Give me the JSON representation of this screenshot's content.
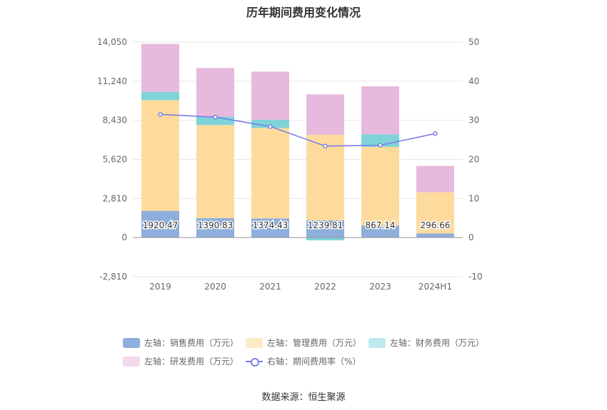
{
  "title": "历年期间费用变化情况",
  "source": "数据来源：恒生聚源",
  "colors": {
    "sales": "#8eaedb",
    "admin": "#fedb9d",
    "finance": "#7fd3d8",
    "rnd": "#e7b9dc",
    "rate": "#7b7fe8"
  },
  "legend": [
    {
      "label": "左轴：销售费用（万元）",
      "color": "#8eaedb",
      "kind": "box"
    },
    {
      "label": "左轴：管理费用（万元）",
      "color": "#fedb9d",
      "kind": "box"
    },
    {
      "label": "左轴：财务费用（万元）",
      "color": "#7fd3d8",
      "kind": "box"
    },
    {
      "label": "左轴：研发费用（万元）",
      "color": "#e7b9dc",
      "kind": "box"
    },
    {
      "label": "右轴：期间费用率（%）",
      "color": "#7b7fe8",
      "kind": "line"
    }
  ],
  "chart_data": {
    "type": "bar",
    "stacked": true,
    "categories": [
      "2019",
      "2020",
      "2021",
      "2022",
      "2023",
      "2024H1"
    ],
    "left_axis": {
      "ticks": [
        "14,050",
        "11,240",
        "8,430",
        "5,620",
        "2,810",
        "0",
        "-2,810"
      ],
      "ylim": [
        -2810,
        14050
      ]
    },
    "right_axis": {
      "ticks": [
        "50",
        "40",
        "30",
        "20",
        "10",
        "0",
        "-10"
      ],
      "ylim": [
        -10,
        50
      ]
    },
    "series": [
      {
        "name": "左轴：销售费用（万元）",
        "key": "sales",
        "values": [
          1920.47,
          1390.83,
          1374.43,
          1239.81,
          867.14,
          296.66
        ],
        "labels": [
          "1920.47",
          "1390.83",
          "1374.43",
          "1239.81",
          "867.14",
          "296.66"
        ]
      },
      {
        "name": "左轴：管理费用（万元）",
        "key": "admin",
        "values": [
          7950,
          6700,
          6500,
          6150,
          5650,
          2950
        ]
      },
      {
        "name": "左轴：财务费用（万元）",
        "key": "finance",
        "values": [
          600,
          600,
          600,
          -200,
          900,
          0
        ]
      },
      {
        "name": "左轴：研发费用（万元）",
        "key": "rnd",
        "values": [
          3450,
          3500,
          3450,
          2900,
          3450,
          1900
        ]
      },
      {
        "name": "右轴：期间费用率（%）",
        "key": "rate",
        "axis": "right",
        "type": "line",
        "values": [
          31.5,
          30.8,
          28.4,
          23.4,
          23.6,
          26.6
        ]
      }
    ],
    "grid": true,
    "legend_position": "bottom"
  }
}
